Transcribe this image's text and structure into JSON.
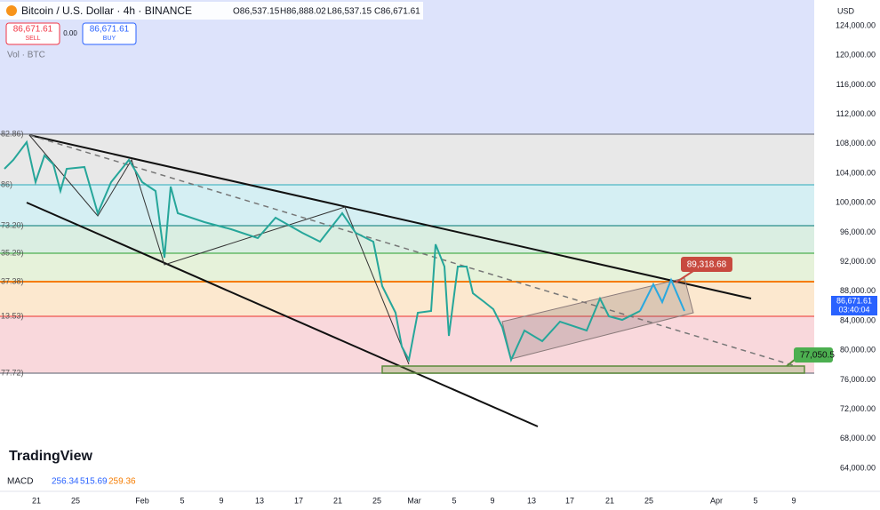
{
  "header": {
    "title": "Bitcoin / U.S. Dollar · 4h · BINANCE",
    "ohlc": [
      "O86,537.15",
      "H86,888.02",
      "L86,537.15",
      "C86,671.61"
    ],
    "sell_price": "86,671.61",
    "sell_label": "SELL",
    "spread": "0.00",
    "buy_price": "86,671.61",
    "buy_label": "BUY",
    "volume_label": "Vol · BTC"
  },
  "price_axis": {
    "currency": "USD",
    "labels": [
      "124,000.00",
      "120,000.00",
      "116,000.00",
      "112,000.00",
      "108,000.00",
      "104,000.00",
      "100,000.00",
      "96,000.00",
      "92,000.00",
      "88,000.00",
      "84,000.00",
      "80,000.00",
      "76,000.00",
      "72,000.00",
      "68,000.00",
      "64,000.00"
    ]
  },
  "current_price": {
    "price": "86,671.61",
    "countdown": "03:40:04"
  },
  "fib_levels": [
    "82.86)",
    "86)",
    "73.20)",
    "35.29)",
    "37.38)",
    "13.53)",
    "77.72)"
  ],
  "annotations": {
    "target": "89,318.68",
    "support": "77,050.5"
  },
  "time_axis": [
    "21",
    "25",
    "Feb",
    "5",
    "9",
    "13",
    "17",
    "21",
    "25",
    "Mar",
    "5",
    "9",
    "13",
    "17",
    "21",
    "25",
    "Apr",
    "5",
    "9"
  ],
  "branding": "TradingView",
  "macd": {
    "label": "MACD",
    "values": [
      "256.34",
      "515.69",
      "259.36"
    ]
  }
}
